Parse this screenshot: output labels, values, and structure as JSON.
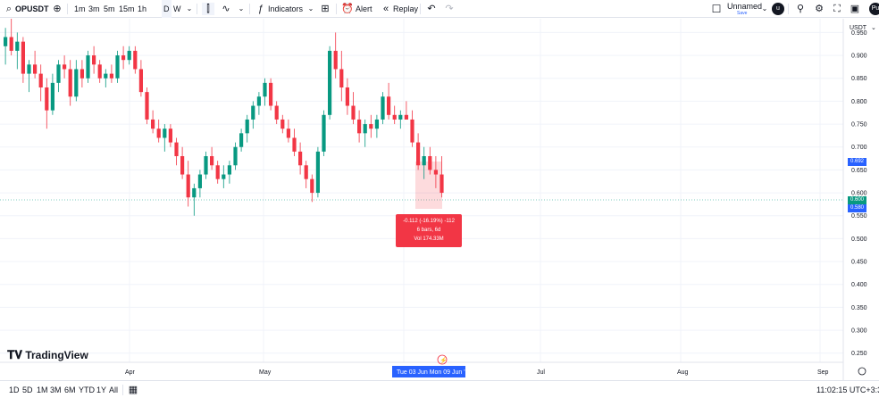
{
  "toolbar": {
    "symbol": "OPUSDT",
    "intervals": [
      "1m",
      "3m",
      "5m",
      "15m",
      "1h",
      "D",
      "W"
    ],
    "active_interval": "D",
    "indicators_label": "Indicators",
    "alert_label": "Alert",
    "replay_label": "Replay",
    "layout_name": "Unnamed",
    "save_label": "Save",
    "avatar_letter": "u",
    "user_initials": "Pu"
  },
  "chart": {
    "currency": "USDT",
    "price_labels": [
      "0.950",
      "0.900",
      "0.850",
      "0.800",
      "0.750",
      "0.700",
      "0.650",
      "0.600",
      "0.550",
      "0.500",
      "0.450",
      "0.400",
      "0.350",
      "0.300",
      "0.250"
    ],
    "months": [
      "Apr",
      "May",
      "Jul",
      "Aug",
      "Sep"
    ],
    "price_tags": {
      "high": "0.692",
      "last": "0.600",
      "low": "0.580"
    },
    "measure": {
      "line1": "-0.112 (-16.19%) -112",
      "line2": "6 bars, 6d",
      "line3": "Vol 174.33M"
    },
    "date_range": "Tue 03 Jun    Mon 09 Jun '25",
    "brand": "TradingView",
    "colors": {
      "up": "#089981",
      "down": "#f23645"
    }
  },
  "chart_data": {
    "type": "candlestick",
    "y_range": [
      0.23,
      0.98
    ],
    "candles": [
      [
        0.92,
        0.96,
        0.88,
        0.94
      ],
      [
        0.94,
        0.98,
        0.9,
        0.91
      ],
      [
        0.91,
        0.95,
        0.87,
        0.93
      ],
      [
        0.93,
        0.94,
        0.84,
        0.86
      ],
      [
        0.86,
        0.89,
        0.82,
        0.88
      ],
      [
        0.88,
        0.91,
        0.85,
        0.86
      ],
      [
        0.86,
        0.88,
        0.8,
        0.83
      ],
      [
        0.83,
        0.85,
        0.74,
        0.78
      ],
      [
        0.78,
        0.86,
        0.77,
        0.84
      ],
      [
        0.84,
        0.89,
        0.82,
        0.88
      ],
      [
        0.88,
        0.9,
        0.85,
        0.87
      ],
      [
        0.87,
        0.89,
        0.79,
        0.81
      ],
      [
        0.81,
        0.89,
        0.8,
        0.87
      ],
      [
        0.87,
        0.89,
        0.83,
        0.85
      ],
      [
        0.85,
        0.91,
        0.84,
        0.9
      ],
      [
        0.9,
        0.92,
        0.86,
        0.88
      ],
      [
        0.88,
        0.89,
        0.84,
        0.85
      ],
      [
        0.85,
        0.87,
        0.83,
        0.86
      ],
      [
        0.86,
        0.88,
        0.84,
        0.85
      ],
      [
        0.85,
        0.91,
        0.84,
        0.9
      ],
      [
        0.9,
        0.92,
        0.87,
        0.89
      ],
      [
        0.89,
        0.92,
        0.88,
        0.91
      ],
      [
        0.91,
        0.92,
        0.86,
        0.87
      ],
      [
        0.87,
        0.89,
        0.81,
        0.82
      ],
      [
        0.82,
        0.83,
        0.75,
        0.76
      ],
      [
        0.76,
        0.78,
        0.73,
        0.74
      ],
      [
        0.74,
        0.76,
        0.71,
        0.72
      ],
      [
        0.72,
        0.75,
        0.69,
        0.74
      ],
      [
        0.74,
        0.75,
        0.7,
        0.71
      ],
      [
        0.71,
        0.72,
        0.66,
        0.68
      ],
      [
        0.68,
        0.7,
        0.63,
        0.64
      ],
      [
        0.64,
        0.67,
        0.57,
        0.59
      ],
      [
        0.59,
        0.62,
        0.55,
        0.61
      ],
      [
        0.61,
        0.65,
        0.59,
        0.64
      ],
      [
        0.64,
        0.69,
        0.63,
        0.68
      ],
      [
        0.68,
        0.7,
        0.65,
        0.66
      ],
      [
        0.66,
        0.67,
        0.62,
        0.63
      ],
      [
        0.63,
        0.66,
        0.61,
        0.64
      ],
      [
        0.64,
        0.67,
        0.62,
        0.66
      ],
      [
        0.66,
        0.71,
        0.65,
        0.7
      ],
      [
        0.7,
        0.74,
        0.69,
        0.73
      ],
      [
        0.73,
        0.77,
        0.71,
        0.76
      ],
      [
        0.76,
        0.8,
        0.74,
        0.79
      ],
      [
        0.79,
        0.82,
        0.77,
        0.81
      ],
      [
        0.81,
        0.85,
        0.79,
        0.84
      ],
      [
        0.84,
        0.85,
        0.78,
        0.79
      ],
      [
        0.79,
        0.8,
        0.75,
        0.76
      ],
      [
        0.76,
        0.77,
        0.73,
        0.74
      ],
      [
        0.74,
        0.76,
        0.71,
        0.72
      ],
      [
        0.72,
        0.74,
        0.68,
        0.69
      ],
      [
        0.69,
        0.71,
        0.64,
        0.66
      ],
      [
        0.66,
        0.67,
        0.61,
        0.63
      ],
      [
        0.63,
        0.64,
        0.58,
        0.6
      ],
      [
        0.6,
        0.7,
        0.59,
        0.69
      ],
      [
        0.69,
        0.78,
        0.68,
        0.77
      ],
      [
        0.77,
        0.92,
        0.76,
        0.91
      ],
      [
        0.91,
        0.95,
        0.85,
        0.87
      ],
      [
        0.87,
        0.91,
        0.8,
        0.83
      ],
      [
        0.83,
        0.85,
        0.77,
        0.79
      ],
      [
        0.79,
        0.82,
        0.75,
        0.76
      ],
      [
        0.76,
        0.78,
        0.71,
        0.73
      ],
      [
        0.73,
        0.76,
        0.7,
        0.75
      ],
      [
        0.75,
        0.77,
        0.72,
        0.74
      ],
      [
        0.74,
        0.77,
        0.72,
        0.76
      ],
      [
        0.76,
        0.82,
        0.75,
        0.81
      ],
      [
        0.81,
        0.84,
        0.76,
        0.77
      ],
      [
        0.77,
        0.79,
        0.75,
        0.76
      ],
      [
        0.76,
        0.78,
        0.74,
        0.77
      ],
      [
        0.77,
        0.8,
        0.76,
        0.76
      ],
      [
        0.76,
        0.78,
        0.7,
        0.71
      ],
      [
        0.71,
        0.73,
        0.65,
        0.66
      ],
      [
        0.66,
        0.7,
        0.63,
        0.68
      ],
      [
        0.68,
        0.7,
        0.64,
        0.65
      ],
      [
        0.65,
        0.68,
        0.61,
        0.64
      ],
      [
        0.64,
        0.68,
        0.59,
        0.6
      ]
    ]
  }
}
